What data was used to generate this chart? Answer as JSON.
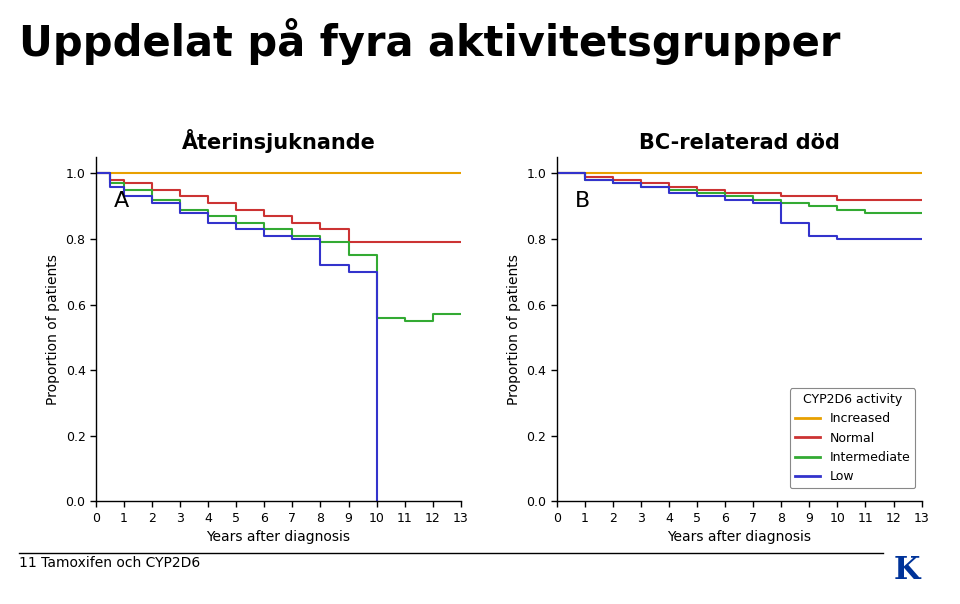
{
  "title": "Uppdelat på fyra aktivitetsgrupper",
  "title_fontsize": 30,
  "subplot_A_title": "Återinsjuknande",
  "subplot_B_title": "BC-relaterad död",
  "subplot_title_fontsize": 15,
  "ylabel": "Proportion of patients",
  "xlabel": "Years after diagnosis",
  "footer_text": "11 Tamoxifen och CYP2D6",
  "ylim": [
    0.0,
    1.05
  ],
  "ytick_min": 0.0,
  "ytick_max": 1.0,
  "xlim": [
    0,
    13
  ],
  "yticks": [
    0.0,
    0.2,
    0.4,
    0.6,
    0.8,
    1.0
  ],
  "xticks": [
    0,
    1,
    2,
    3,
    4,
    5,
    6,
    7,
    8,
    9,
    10,
    11,
    12,
    13
  ],
  "legend_title": "CYP2D6 activity",
  "colors": {
    "Increased": "#E8A000",
    "Normal": "#CC3333",
    "Intermediate": "#33AA33",
    "Low": "#3333CC"
  },
  "A_increased": {
    "x": [
      0,
      13
    ],
    "y": [
      1.0,
      1.0
    ]
  },
  "A_normal": {
    "x": [
      0,
      0.5,
      0.5,
      1,
      1,
      2,
      2,
      3,
      3,
      4,
      4,
      5,
      5,
      6,
      6,
      7,
      7,
      8,
      8,
      9,
      9,
      13
    ],
    "y": [
      1.0,
      1.0,
      0.98,
      0.98,
      0.97,
      0.97,
      0.95,
      0.95,
      0.93,
      0.93,
      0.91,
      0.91,
      0.89,
      0.89,
      0.87,
      0.87,
      0.85,
      0.85,
      0.83,
      0.83,
      0.79,
      0.79
    ]
  },
  "A_intermediate": {
    "x": [
      0,
      0.5,
      0.5,
      1,
      1,
      2,
      2,
      3,
      3,
      4,
      4,
      5,
      5,
      6,
      6,
      7,
      7,
      8,
      8,
      9,
      9,
      10,
      10,
      11,
      11,
      12,
      12,
      13
    ],
    "y": [
      1.0,
      1.0,
      0.97,
      0.97,
      0.95,
      0.95,
      0.92,
      0.92,
      0.89,
      0.89,
      0.87,
      0.87,
      0.85,
      0.85,
      0.83,
      0.83,
      0.81,
      0.81,
      0.79,
      0.79,
      0.75,
      0.75,
      0.56,
      0.56,
      0.55,
      0.55,
      0.57,
      0.57
    ]
  },
  "A_low": {
    "x": [
      0,
      0.5,
      0.5,
      1,
      1,
      2,
      2,
      3,
      3,
      4,
      4,
      5,
      5,
      6,
      6,
      7,
      7,
      8,
      8,
      9,
      9,
      10,
      10
    ],
    "y": [
      1.0,
      1.0,
      0.96,
      0.96,
      0.93,
      0.93,
      0.91,
      0.91,
      0.88,
      0.88,
      0.85,
      0.85,
      0.83,
      0.83,
      0.81,
      0.81,
      0.8,
      0.8,
      0.72,
      0.72,
      0.7,
      0.7,
      0.0
    ]
  },
  "B_increased": {
    "x": [
      0,
      13
    ],
    "y": [
      1.0,
      1.0
    ]
  },
  "B_normal": {
    "x": [
      0,
      1,
      1,
      2,
      2,
      3,
      3,
      4,
      4,
      5,
      5,
      6,
      6,
      7,
      7,
      8,
      8,
      9,
      9,
      10,
      10,
      11,
      11,
      12,
      12,
      13
    ],
    "y": [
      1.0,
      1.0,
      0.99,
      0.99,
      0.98,
      0.98,
      0.97,
      0.97,
      0.96,
      0.96,
      0.95,
      0.95,
      0.94,
      0.94,
      0.94,
      0.94,
      0.93,
      0.93,
      0.93,
      0.93,
      0.92,
      0.92,
      0.92,
      0.92,
      0.92,
      0.92
    ]
  },
  "B_intermediate": {
    "x": [
      0,
      1,
      1,
      2,
      2,
      3,
      3,
      4,
      4,
      5,
      5,
      6,
      6,
      7,
      7,
      8,
      8,
      9,
      9,
      10,
      10,
      11,
      11,
      12,
      12,
      13
    ],
    "y": [
      1.0,
      1.0,
      0.98,
      0.98,
      0.97,
      0.97,
      0.96,
      0.96,
      0.95,
      0.95,
      0.94,
      0.94,
      0.93,
      0.93,
      0.92,
      0.92,
      0.91,
      0.91,
      0.9,
      0.9,
      0.89,
      0.89,
      0.88,
      0.88,
      0.88,
      0.88
    ]
  },
  "B_low": {
    "x": [
      0,
      1,
      1,
      2,
      2,
      3,
      3,
      4,
      4,
      5,
      5,
      6,
      6,
      7,
      7,
      8,
      8,
      9,
      9,
      10,
      10,
      11,
      11,
      12,
      12,
      13
    ],
    "y": [
      1.0,
      1.0,
      0.98,
      0.98,
      0.97,
      0.97,
      0.96,
      0.96,
      0.94,
      0.94,
      0.93,
      0.93,
      0.92,
      0.92,
      0.91,
      0.91,
      0.85,
      0.85,
      0.81,
      0.81,
      0.8,
      0.8,
      0.8,
      0.8,
      0.8,
      0.8
    ]
  },
  "background_color": "#FFFFFF",
  "label_A": "A",
  "label_B": "B"
}
